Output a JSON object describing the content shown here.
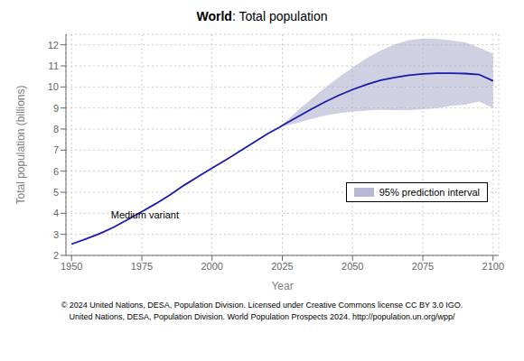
{
  "chart_data": {
    "type": "line",
    "title": "World: Total population",
    "xlabel": "Year",
    "ylabel": "Total population (billions)",
    "x": [
      1950,
      1955,
      1960,
      1965,
      1970,
      1975,
      1980,
      1985,
      1990,
      1995,
      2000,
      2005,
      2010,
      2015,
      2020,
      2024,
      2025,
      2030,
      2035,
      2040,
      2045,
      2050,
      2055,
      2060,
      2065,
      2070,
      2075,
      2080,
      2085,
      2090,
      2095,
      2100
    ],
    "values": [
      2.536,
      2.773,
      3.034,
      3.339,
      3.7,
      4.079,
      4.458,
      4.87,
      5.327,
      5.742,
      6.143,
      6.542,
      6.957,
      7.38,
      7.795,
      8.085,
      8.17,
      8.548,
      8.924,
      9.276,
      9.595,
      9.875,
      10.113,
      10.316,
      10.453,
      10.556,
      10.62,
      10.65,
      10.654,
      10.635,
      10.591,
      10.289
    ],
    "color": "#1a1aaa",
    "series": [
      {
        "name": "95% prediction interval",
        "type": "area",
        "color": "#aaaacc",
        "x": [
          2024,
          2030,
          2035,
          2040,
          2045,
          2050,
          2055,
          2060,
          2065,
          2070,
          2075,
          2080,
          2085,
          2090,
          2095,
          2100
        ],
        "lower": [
          8.085,
          8.28,
          8.47,
          8.63,
          8.75,
          8.83,
          8.88,
          8.91,
          8.9,
          8.89,
          8.94,
          8.99,
          9.1,
          9.16,
          9.31,
          9.0
        ],
        "upper": [
          8.085,
          8.82,
          9.39,
          9.94,
          10.45,
          10.93,
          11.36,
          11.73,
          12.02,
          12.22,
          12.3,
          12.29,
          12.21,
          12.12,
          11.87,
          11.58
        ]
      }
    ],
    "xlim": [
      1948,
      2102
    ],
    "ylim": [
      2,
      12.5
    ],
    "xticks": [
      1950,
      1975,
      2000,
      2025,
      2050,
      2075,
      2100
    ],
    "yticks": [
      2,
      3,
      4,
      5,
      6,
      7,
      8,
      9,
      10,
      11,
      12
    ],
    "grid": true,
    "legend": "lower right",
    "annotations": [
      {
        "text": "Medium variant",
        "x": 1964,
        "y": 3.75
      }
    ],
    "footnotes": [
      "© 2024 United Nations, DESA, Population Division. Licensed under Creative Commons license CC BY 3.0 IGO.",
      "United Nations, DESA, Population Division. World Population Prospects 2024. http://population.un.org/wpp/"
    ]
  }
}
